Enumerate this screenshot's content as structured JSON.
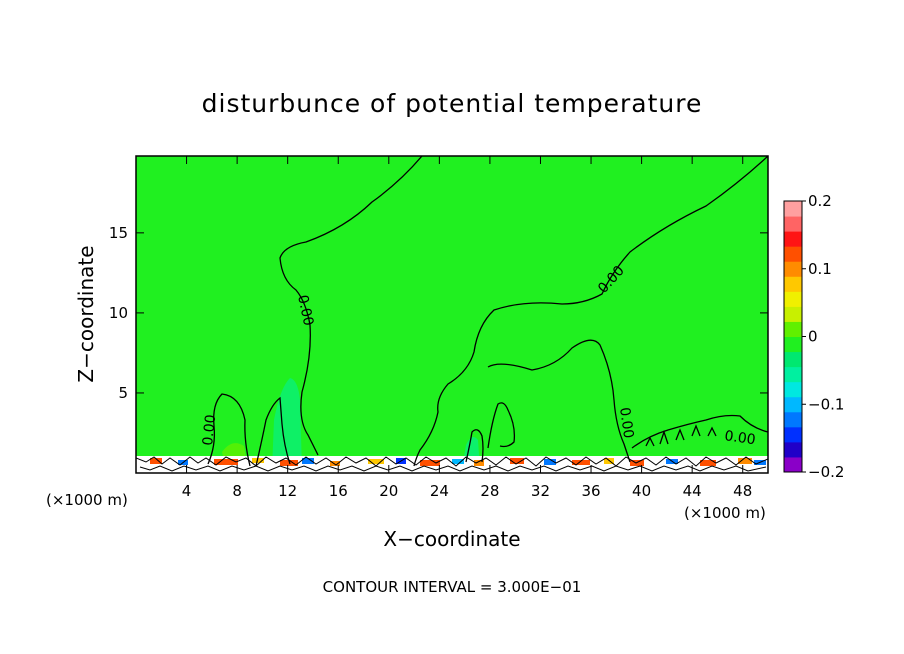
{
  "chart_data": {
    "type": "heatmap",
    "title": "disturbunce of potential temperature",
    "xlabel": "X−coordinate",
    "ylabel": "Z−coordinate",
    "x_unit": "(×1000 m)",
    "x_unit_right": "(×1000 m)",
    "xlim": [
      0,
      50
    ],
    "ylim": [
      0,
      19.8
    ],
    "x_ticks": [
      4,
      8,
      12,
      16,
      20,
      24,
      28,
      32,
      36,
      40,
      44,
      48
    ],
    "y_ticks": [
      5,
      10,
      15
    ],
    "colorbar": {
      "range": [
        -0.2,
        0.2
      ],
      "ticks": [
        0.2,
        0.1,
        0,
        -0.1,
        -0.2
      ],
      "tick_labels": [
        "0.2",
        "0.1",
        "0",
        "−0.1",
        "−0.2"
      ],
      "colors": [
        "#8a00c8",
        "#2000c8",
        "#0030ff",
        "#0078ff",
        "#00b8ff",
        "#00e8e0",
        "#00f0a0",
        "#00e870",
        "#20f020",
        "#60f000",
        "#c8f000",
        "#f0f000",
        "#ffc800",
        "#ff8c00",
        "#ff5000",
        "#ff1414",
        "#ff6464",
        "#ffa0a0"
      ]
    },
    "contour_label": "0.00",
    "contour_interval": "CONTOUR INTERVAL = 3.000E−01"
  }
}
